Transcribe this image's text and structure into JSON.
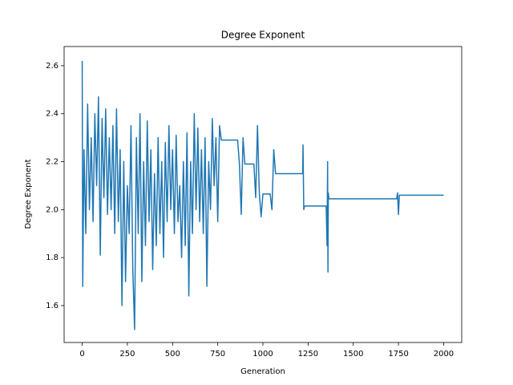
{
  "chart_data": {
    "type": "line",
    "title": "Degree Exponent",
    "x_label": "Generation",
    "y_label": "Degree Exponent",
    "x": [
      0,
      3,
      10,
      20,
      30,
      40,
      50,
      60,
      70,
      80,
      90,
      100,
      110,
      120,
      130,
      140,
      150,
      160,
      170,
      180,
      190,
      200,
      210,
      220,
      230,
      240,
      250,
      260,
      270,
      280,
      290,
      300,
      310,
      320,
      330,
      340,
      350,
      360,
      370,
      380,
      390,
      400,
      410,
      420,
      430,
      440,
      450,
      460,
      470,
      480,
      490,
      500,
      510,
      520,
      530,
      540,
      550,
      560,
      570,
      580,
      590,
      600,
      610,
      620,
      630,
      640,
      650,
      660,
      670,
      680,
      690,
      700,
      710,
      720,
      730,
      740,
      750,
      760,
      770,
      860,
      870,
      880,
      890,
      900,
      950,
      960,
      970,
      980,
      990,
      1000,
      1040,
      1050,
      1060,
      1070,
      1220,
      1222,
      1226,
      1230,
      1350,
      1355,
      1358,
      1360,
      1362,
      1365,
      1740,
      1745,
      1750,
      1755,
      2000
    ],
    "series": [
      {
        "name": "Degree Exponent",
        "color": "#1f77b4",
        "values": [
          2.62,
          1.68,
          2.25,
          1.9,
          2.44,
          2.0,
          2.3,
          1.95,
          2.4,
          2.1,
          2.47,
          1.81,
          2.38,
          2.05,
          2.42,
          1.98,
          2.3,
          2.0,
          2.35,
          1.9,
          2.42,
          1.95,
          2.25,
          1.6,
          2.2,
          1.7,
          2.1,
          1.9,
          2.35,
          1.75,
          1.5,
          2.3,
          1.9,
          2.4,
          1.7,
          2.2,
          1.85,
          2.37,
          1.95,
          2.25,
          1.75,
          2.15,
          1.85,
          2.3,
          1.9,
          2.2,
          1.8,
          2.28,
          1.95,
          2.35,
          2.0,
          2.25,
          1.9,
          2.31,
          1.95,
          2.1,
          1.8,
          2.2,
          1.85,
          2.32,
          1.64,
          2.2,
          1.9,
          2.4,
          2.0,
          2.34,
          1.95,
          2.25,
          1.9,
          2.3,
          1.68,
          2.2,
          2.0,
          2.38,
          2.1,
          2.3,
          1.95,
          2.35,
          2.29,
          2.29,
          2.19,
          1.98,
          2.3,
          2.19,
          2.19,
          2.05,
          2.35,
          2.07,
          1.97,
          2.065,
          2.065,
          2.0,
          2.25,
          2.15,
          2.15,
          2.27,
          2.0,
          2.015,
          2.015,
          1.85,
          2.2,
          1.74,
          2.07,
          2.045,
          2.045,
          2.07,
          1.98,
          2.06,
          2.06
        ]
      }
    ],
    "xlim": [
      -100,
      2100
    ],
    "ylim": [
      1.446,
      2.68
    ],
    "xticks": [
      0,
      250,
      500,
      750,
      1000,
      1250,
      1500,
      1750,
      2000
    ],
    "yticks": [
      1.6,
      1.8,
      {
        "value": 2,
        "label": "2.0"
      },
      2.2,
      2.4,
      2.6
    ]
  }
}
